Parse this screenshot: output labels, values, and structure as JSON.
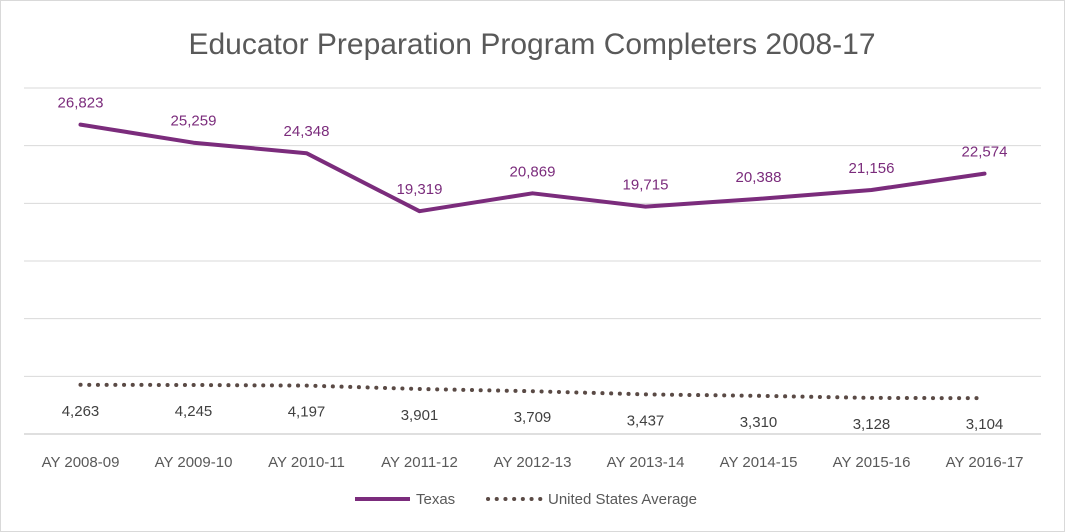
{
  "chart_data": {
    "type": "line",
    "title": "Educator Preparation Program Completers 2008-17",
    "categories": [
      "AY 2008-09",
      "AY 2009-10",
      "AY 2010-11",
      "AY 2011-12",
      "AY 2012-13",
      "AY 2013-14",
      "AY 2014-15",
      "AY 2015-16",
      "AY 2016-17"
    ],
    "series": [
      {
        "name": "Texas",
        "values": [
          26823,
          25259,
          24348,
          19319,
          20869,
          19715,
          20388,
          21156,
          22574
        ],
        "labels": [
          "26,823",
          "25,259",
          "24,348",
          "19,319",
          "20,869",
          "19,715",
          "20,388",
          "21,156",
          "22,574"
        ],
        "color": "#7b2c7c",
        "style": "solid"
      },
      {
        "name": "United States Average",
        "values": [
          4263,
          4245,
          4197,
          3901,
          3709,
          3437,
          3310,
          3128,
          3104
        ],
        "labels": [
          "4,263",
          "4,245",
          "4,197",
          "3,901",
          "3,709",
          "3,437",
          "3,310",
          "3,128",
          "3,104"
        ],
        "color": "#5a4a45",
        "style": "dotted"
      }
    ],
    "ylim": [
      0,
      30000
    ],
    "y_axis_labels_shown": false,
    "grid": true,
    "legend": "bottom"
  }
}
